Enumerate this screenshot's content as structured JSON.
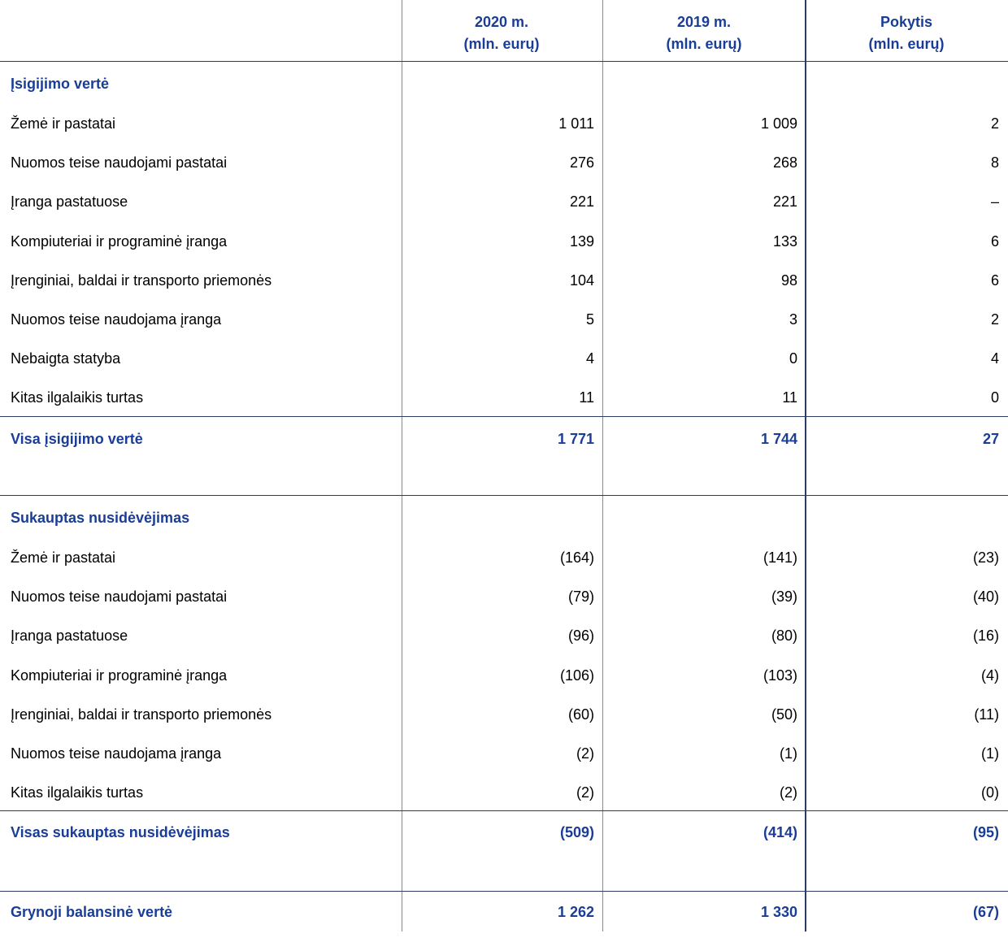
{
  "header": {
    "columns": [
      {
        "year": "2020 m.",
        "unit": "(mln. eurų)"
      },
      {
        "year": "2019 m.",
        "unit": "(mln. eurų)"
      },
      {
        "year": "Pokytis",
        "unit": "(mln. eurų)"
      }
    ]
  },
  "sections": [
    {
      "title": "Įsigijimo vertė",
      "rows": [
        {
          "label": "Žemė ir pastatai",
          "values": [
            "1 011",
            "1 009",
            "2"
          ]
        },
        {
          "label": "Nuomos teise naudojami pastatai",
          "values": [
            "276",
            "268",
            "8"
          ]
        },
        {
          "label": "Įranga pastatuose",
          "values": [
            "221",
            "221",
            "–"
          ]
        },
        {
          "label": "Kompiuteriai ir programinė įranga",
          "values": [
            "139",
            "133",
            "6"
          ]
        },
        {
          "label": "Įrenginiai, baldai ir transporto priemonės",
          "values": [
            "104",
            "98",
            "6"
          ]
        },
        {
          "label": "Nuomos teise naudojama įranga",
          "values": [
            "5",
            "3",
            "2"
          ]
        },
        {
          "label": "Nebaigta statyba",
          "values": [
            "4",
            "0",
            "4"
          ]
        },
        {
          "label": "Kitas ilgalaikis turtas",
          "values": [
            "11",
            "11",
            "0"
          ]
        }
      ],
      "total": {
        "label": "Visa įsigijimo vertė",
        "values": [
          "1 771",
          "1 744",
          "27"
        ]
      }
    },
    {
      "title": "Sukauptas nusidėvėjimas",
      "rows": [
        {
          "label": "Žemė ir pastatai",
          "values": [
            "(164)",
            "(141)",
            "(23)"
          ]
        },
        {
          "label": "Nuomos teise naudojami pastatai",
          "values": [
            "(79)",
            "(39)",
            "(40)"
          ]
        },
        {
          "label": "Įranga pastatuose",
          "values": [
            "(96)",
            "(80)",
            "(16)"
          ]
        },
        {
          "label": "Kompiuteriai ir programinė įranga",
          "values": [
            "(106)",
            "(103)",
            "(4)"
          ]
        },
        {
          "label": "Įrenginiai, baldai ir transporto priemonės",
          "values": [
            "(60)",
            "(50)",
            "(11)"
          ]
        },
        {
          "label": "Nuomos teise naudojama įranga",
          "values": [
            "(2)",
            "(1)",
            "(1)"
          ]
        },
        {
          "label": "Kitas ilgalaikis turtas",
          "values": [
            "(2)",
            "(2)",
            "(0)"
          ]
        }
      ],
      "total": {
        "label": "Visas sukauptas nusidėvėjimas",
        "values": [
          "(509)",
          "(414)",
          "(95)"
        ]
      }
    }
  ],
  "net": {
    "label": "Grynoji balansinė vertė",
    "values": [
      "1 262",
      "1 330",
      "(67)"
    ]
  }
}
